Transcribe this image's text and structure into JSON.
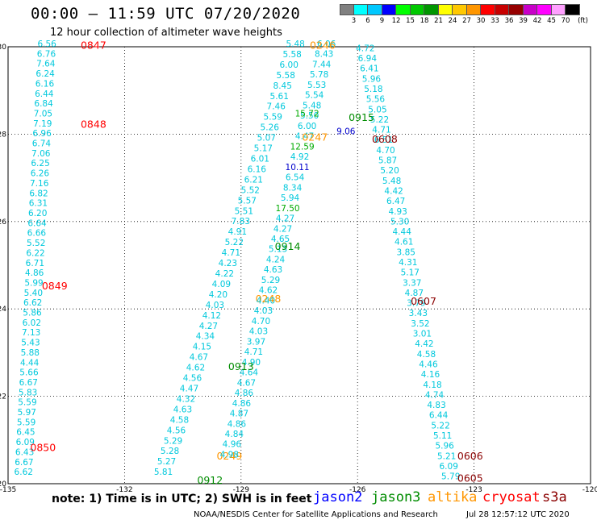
{
  "header": {
    "title": "00:00 – 11:59 UTC 07/20/2020",
    "subtitle": "12 hour collection of altimeter wave heights"
  },
  "legend": {
    "unit": "(ft)",
    "items": [
      {
        "label": "3",
        "color": "#808080"
      },
      {
        "label": "6",
        "color": "#00ffff"
      },
      {
        "label": "9",
        "color": "#00c8ff"
      },
      {
        "label": "12",
        "color": "#0000ff"
      },
      {
        "label": "15",
        "color": "#00ff00"
      },
      {
        "label": "18",
        "color": "#00c800"
      },
      {
        "label": "21",
        "color": "#009600"
      },
      {
        "label": "24",
        "color": "#ffff00"
      },
      {
        "label": "27",
        "color": "#ffc800"
      },
      {
        "label": "30",
        "color": "#ff9600"
      },
      {
        "label": "33",
        "color": "#ff0000"
      },
      {
        "label": "36",
        "color": "#c80000"
      },
      {
        "label": "39",
        "color": "#960000"
      },
      {
        "label": "42",
        "color": "#c800c8"
      },
      {
        "label": "45",
        "color": "#ff00ff"
      },
      {
        "label": "70",
        "color": "#ffa0ff"
      },
      {
        "label": "",
        "color": "#000000"
      }
    ]
  },
  "map": {
    "lon_ticks": [
      "-135",
      "-132",
      "-129",
      "-126",
      "-123",
      "-120"
    ],
    "lat_ticks": [
      "30",
      "28",
      "26",
      "24",
      "22",
      "20"
    ]
  },
  "colors": {
    "low": "#00c8dc",
    "mid": "#00aa00",
    "high": "#0000cc",
    "jason2": "#0000ff",
    "jason3": "#008c00",
    "altika": "#ff9600",
    "cryosat": "#ff0000",
    "s3a": "#8b0000"
  },
  "tracks": [
    {
      "id": "west",
      "lon_start": -134.0,
      "lat_start": 30.0,
      "lon_end": -134.6,
      "lat_end": 20.2,
      "values": [
        "6.56",
        "6.76",
        "7.64",
        "6.24",
        "6.16",
        "6.44",
        "6.84",
        "7.05",
        "7.19",
        "6.96",
        "6.74",
        "7.06",
        "6.25",
        "6.26",
        "7.16",
        "6.82",
        "6.31",
        "6.20",
        "6.64",
        "6.66",
        "5.52",
        "6.22",
        "6.71",
        "4.86",
        "5.99",
        "5.40",
        "6.62",
        "5.86",
        "6.02",
        "7.13",
        "5.43",
        "5.88",
        "4.44",
        "5.66",
        "6.67",
        "5.83",
        "5.59",
        "5.97",
        "5.59",
        "6.45",
        "6.09",
        "6.43",
        "6.67",
        "6.62"
      ],
      "times": [
        {
          "text": "0847",
          "lon": -132.8,
          "lat": 29.95,
          "sat": "cryosat"
        },
        {
          "text": "0848",
          "lon": -132.8,
          "lat": 28.15,
          "sat": "cryosat"
        },
        {
          "text": "0849",
          "lon": -133.8,
          "lat": 24.45,
          "sat": "cryosat"
        },
        {
          "text": "0850",
          "lon": -134.1,
          "lat": 20.75,
          "sat": "cryosat"
        }
      ]
    },
    {
      "id": "central-nw",
      "lon_start": -127.6,
      "lat_start": 30.0,
      "lon_end": -131.0,
      "lat_end": 20.2,
      "values": [
        "5.48",
        "5.58",
        "6.00",
        "5.58",
        "8.45",
        "5.61",
        "7.46",
        "5.59",
        "5.26",
        "5.07",
        "5.17",
        "6.01",
        "6.16",
        "6.21",
        "5.52",
        "5.57",
        "5.51",
        "7.83",
        "4.91",
        "5.22",
        "4.71",
        "4.23",
        "4.22",
        "4.09",
        "4.20",
        "4.03",
        "4.12",
        "4.27",
        "4.34",
        "4.15",
        "4.67",
        "4.62",
        "4.56",
        "4.47",
        "4.32",
        "4.63",
        "4.58",
        "4.56",
        "5.29",
        "5.28",
        "5.27",
        "5.81"
      ],
      "times": [
        {
          "text": "0248",
          "lon": -128.3,
          "lat": 24.15,
          "sat": "altika"
        },
        {
          "text": "0249",
          "lon": -129.3,
          "lat": 20.55,
          "sat": "altika"
        }
      ]
    },
    {
      "id": "central-ne",
      "lon_start": -126.8,
      "lat_start": 30.0,
      "lon_end": -129.3,
      "lat_end": 20.6,
      "values": [
        "6.06",
        "8.43",
        "7.44",
        "5.78",
        "5.53",
        "5.54",
        "5.48",
        "5.50",
        "6.00",
        "4.47",
        "12.59",
        "4.92",
        "10.11",
        "6.54",
        "8.34",
        "5.94",
        "17.50",
        "4.27",
        "4.27",
        "4.65",
        "5.13",
        "4.24",
        "4.63",
        "5.29",
        "4.62",
        "4.40",
        "4.03",
        "4.70",
        "4.03",
        "3.97",
        "4.71",
        "4.90",
        "4.64",
        "4.67",
        "4.86",
        "4.86",
        "4.87",
        "4.86",
        "4.84",
        "4.96",
        "4.98"
      ],
      "times": [
        {
          "text": "0246",
          "lon": -126.9,
          "lat": 29.95,
          "sat": "altika"
        },
        {
          "text": "0247",
          "lon": -127.1,
          "lat": 27.85,
          "sat": "altika"
        },
        {
          "text": "0914",
          "lon": -127.8,
          "lat": 25.35,
          "sat": "jason3"
        },
        {
          "text": "0913",
          "lon": -129.0,
          "lat": 22.6,
          "sat": "jason3"
        },
        {
          "text": "0912",
          "lon": -129.8,
          "lat": 20.0,
          "sat": "jason3"
        }
      ]
    },
    {
      "id": "east",
      "lon_start": -125.8,
      "lat_start": 29.9,
      "lon_end": -123.6,
      "lat_end": 20.1,
      "values": [
        "4.72",
        "6.94",
        "6.41",
        "5.96",
        "5.18",
        "5.56",
        "5.05",
        "5.22",
        "4.71",
        "6.51",
        "4.70",
        "5.87",
        "5.20",
        "5.48",
        "4.42",
        "6.47",
        "4.93",
        "5.30",
        "4.44",
        "4.61",
        "3.85",
        "4.31",
        "5.17",
        "3.37",
        "4.87",
        "3.79",
        "3.43",
        "3.52",
        "3.01",
        "4.42",
        "4.58",
        "4.46",
        "4.16",
        "4.18",
        "4.74",
        "4.83",
        "6.44",
        "5.22",
        "5.11",
        "5.96",
        "5.21",
        "6.09",
        "5.79"
      ],
      "times": [
        {
          "text": "0915",
          "lon": -125.9,
          "lat": 28.3,
          "sat": "jason3"
        },
        {
          "text": "0608",
          "lon": -125.3,
          "lat": 27.8,
          "sat": "s3a"
        },
        {
          "text": "0607",
          "lon": -124.3,
          "lat": 24.1,
          "sat": "s3a"
        },
        {
          "text": "0606",
          "lon": -123.1,
          "lat": 20.55,
          "sat": "s3a"
        },
        {
          "text": "0605",
          "lon": -123.1,
          "lat": 20.05,
          "sat": "s3a"
        }
      ]
    },
    {
      "id": "mid-band",
      "lon_start": -127.3,
      "lat_start": 28.4,
      "lon_end": -126.3,
      "lat_end": 28.0,
      "values": [
        "15.72",
        "9.06"
      ],
      "times": []
    }
  ],
  "footer": {
    "note": "note:  1) Time is in UTC;  2) SWH is in feet",
    "satellites": [
      {
        "name": "jason2",
        "key": "jason2"
      },
      {
        "name": "jason3",
        "key": "jason3"
      },
      {
        "name": "altika",
        "key": "altika"
      },
      {
        "name": "cryosat",
        "key": "cryosat"
      },
      {
        "name": "s3a",
        "key": "s3a"
      }
    ],
    "credit": "NOAA/NESDIS Center for Satellite Applications and Research",
    "timestamp": "Jul 28 12:57:12 UTC 2020"
  }
}
